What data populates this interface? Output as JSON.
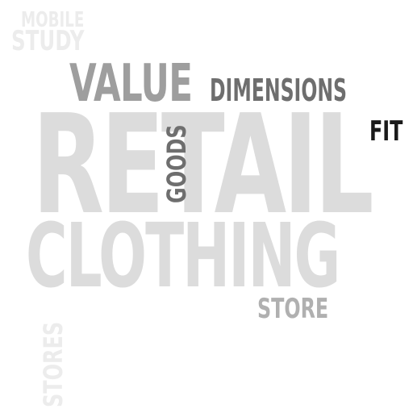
{
  "word_cloud": {
    "words": [
      {
        "text": "RETAIL",
        "color": "#dcdcdc",
        "orientation": "horizontal",
        "rank": 1
      },
      {
        "text": "CLOTHING",
        "color": "#dcdcdc",
        "orientation": "horizontal",
        "rank": 2
      },
      {
        "text": "VALUE",
        "color": "#9e9e9e",
        "orientation": "horizontal",
        "rank": 3
      },
      {
        "text": "DIMENSIONS",
        "color": "#6e6e6e",
        "orientation": "horizontal",
        "rank": 4
      },
      {
        "text": "FIT",
        "color": "#1a1a1a",
        "orientation": "horizontal",
        "rank": 5
      },
      {
        "text": "GOODS",
        "color": "#6e6e6e",
        "orientation": "vertical",
        "rank": 6
      },
      {
        "text": "STORE",
        "color": "#b0b0b0",
        "orientation": "horizontal",
        "rank": 7
      },
      {
        "text": "STORES",
        "color": "#ececec",
        "orientation": "vertical",
        "rank": 8
      },
      {
        "text": "MOBILE",
        "color": "#ececec",
        "orientation": "horizontal",
        "rank": 9
      },
      {
        "text": "STUDY",
        "color": "#ececec",
        "orientation": "horizontal",
        "rank": 10
      }
    ]
  }
}
